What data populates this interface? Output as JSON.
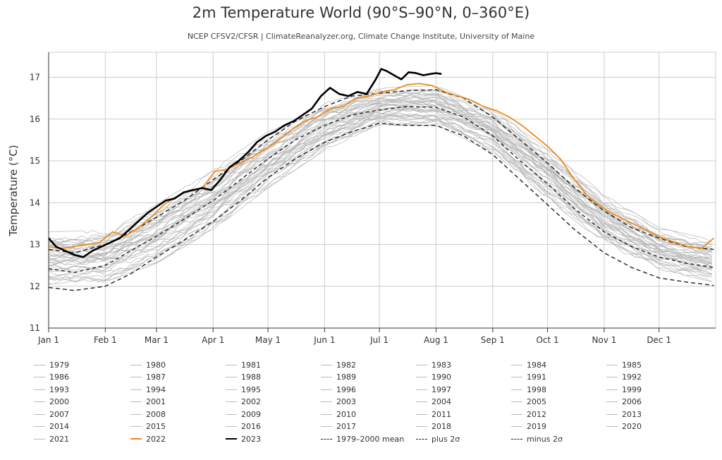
{
  "chart_data": {
    "type": "line",
    "title": "2m Temperature World (90°S–90°N, 0–360°E)",
    "subtitle": "NCEP CFSV2/CFSR | ClimateReanalyzer.org, Climate Change Institute, University of Maine",
    "xlabel": "",
    "ylabel": "Temperature (°C)",
    "ylim": [
      11,
      17.6
    ],
    "yticks": [
      11,
      12,
      13,
      14,
      15,
      16,
      17
    ],
    "xlim": [
      1,
      366
    ],
    "xticks": [
      {
        "label": "Jan 1",
        "day": 1
      },
      {
        "label": "Feb 1",
        "day": 32
      },
      {
        "label": "Mar 1",
        "day": 60
      },
      {
        "label": "Apr 1",
        "day": 91
      },
      {
        "label": "May 1",
        "day": 121
      },
      {
        "label": "Jun 1",
        "day": 152
      },
      {
        "label": "Jul 1",
        "day": 182
      },
      {
        "label": "Aug 1",
        "day": 213
      },
      {
        "label": "Sep 1",
        "day": 244
      },
      {
        "label": "Oct 1",
        "day": 274
      },
      {
        "label": "Nov 1",
        "day": 305
      },
      {
        "label": "Dec 1",
        "day": 335
      }
    ],
    "grid": true,
    "legend_position": "bottom",
    "background_years": [
      "1979",
      "1980",
      "1981",
      "1982",
      "1983",
      "1984",
      "1985",
      "1986",
      "1987",
      "1988",
      "1989",
      "1990",
      "1991",
      "1992",
      "1993",
      "1994",
      "1995",
      "1996",
      "1997",
      "1998",
      "1999",
      "2000",
      "2001",
      "2002",
      "2003",
      "2004",
      "2005",
      "2006",
      "2007",
      "2008",
      "2009",
      "2010",
      "2011",
      "2012",
      "2013",
      "2014",
      "2015",
      "2016",
      "2017",
      "2018",
      "2019",
      "2020",
      "2021"
    ],
    "envelope_day": [
      1,
      32,
      60,
      91,
      121,
      152,
      182,
      213,
      244,
      274,
      305,
      335,
      365
    ],
    "envelope_low": [
      12.05,
      12.1,
      12.55,
      13.35,
      14.35,
      15.25,
      15.85,
      15.85,
      15.2,
      14.1,
      13.0,
      12.4,
      12.1
    ],
    "envelope_high": [
      13.3,
      13.35,
      13.95,
      14.8,
      15.7,
      16.4,
      16.75,
      16.8,
      16.25,
      15.3,
      14.2,
      13.4,
      13.1
    ],
    "series": [
      {
        "name": "1979–2000 mean",
        "color": "#222222",
        "dash": "5,4",
        "x": [
          1,
          15,
          32,
          46,
          60,
          75,
          91,
          106,
          121,
          136,
          152,
          167,
          182,
          197,
          213,
          228,
          244,
          259,
          274,
          289,
          305,
          320,
          335,
          350,
          365
        ],
        "y": [
          12.42,
          12.33,
          12.5,
          12.85,
          13.2,
          13.6,
          14.05,
          14.55,
          15.05,
          15.5,
          15.85,
          16.1,
          16.22,
          16.3,
          16.28,
          16.05,
          15.6,
          15.0,
          14.45,
          13.85,
          13.3,
          12.95,
          12.7,
          12.55,
          12.45
        ]
      },
      {
        "name": "plus 2σ",
        "color": "#222222",
        "dash": "6,4",
        "x": [
          1,
          15,
          32,
          46,
          60,
          75,
          91,
          106,
          121,
          136,
          152,
          167,
          182,
          197,
          213,
          228,
          244,
          259,
          274,
          289,
          305,
          320,
          335,
          350,
          365
        ],
        "y": [
          12.88,
          12.8,
          13.0,
          13.3,
          13.65,
          14.05,
          14.55,
          15.0,
          15.5,
          15.95,
          16.3,
          16.55,
          16.62,
          16.68,
          16.7,
          16.5,
          16.05,
          15.5,
          14.95,
          14.35,
          13.8,
          13.4,
          13.15,
          12.95,
          12.88
        ]
      },
      {
        "name": "minus 2σ",
        "color": "#222222",
        "dash": "6,4",
        "x": [
          1,
          15,
          32,
          46,
          60,
          75,
          91,
          106,
          121,
          136,
          152,
          167,
          182,
          197,
          213,
          228,
          244,
          259,
          274,
          289,
          305,
          320,
          335,
          350,
          365
        ],
        "y": [
          11.97,
          11.9,
          12.0,
          12.3,
          12.7,
          13.1,
          13.55,
          14.05,
          14.6,
          15.05,
          15.45,
          15.7,
          15.9,
          15.85,
          15.85,
          15.6,
          15.15,
          14.55,
          13.95,
          13.35,
          12.8,
          12.45,
          12.2,
          12.1,
          12.02
        ]
      },
      {
        "name": "2022",
        "color": "#ee8a1e",
        "dash": "",
        "x": [
          1,
          8,
          15,
          22,
          29,
          36,
          43,
          50,
          57,
          64,
          71,
          78,
          85,
          92,
          99,
          106,
          113,
          120,
          127,
          134,
          141,
          148,
          155,
          162,
          169,
          176,
          183,
          190,
          197,
          204,
          211,
          218,
          225,
          232,
          239,
          246,
          253,
          260,
          267,
          274,
          281,
          288,
          295,
          302,
          309,
          316,
          323,
          330,
          337,
          344,
          351,
          358,
          365
        ],
        "y": [
          12.95,
          12.9,
          12.95,
          13.0,
          13.05,
          13.3,
          13.2,
          13.4,
          13.65,
          13.95,
          14.15,
          14.3,
          14.35,
          14.75,
          14.8,
          14.95,
          15.1,
          15.3,
          15.5,
          15.75,
          15.95,
          16.05,
          16.25,
          16.3,
          16.5,
          16.55,
          16.65,
          16.7,
          16.82,
          16.85,
          16.8,
          16.65,
          16.55,
          16.45,
          16.3,
          16.2,
          16.05,
          15.85,
          15.6,
          15.35,
          15.05,
          14.6,
          14.2,
          13.95,
          13.75,
          13.6,
          13.45,
          13.3,
          13.15,
          13.05,
          12.95,
          12.9,
          13.15
        ]
      },
      {
        "name": "2023",
        "color": "#000000",
        "dash": "",
        "x": [
          1,
          5,
          10,
          15,
          20,
          25,
          30,
          35,
          40,
          45,
          50,
          55,
          60,
          65,
          70,
          75,
          80,
          85,
          90,
          95,
          100,
          105,
          110,
          115,
          120,
          125,
          130,
          135,
          140,
          145,
          150,
          155,
          160,
          165,
          170,
          175,
          180,
          183,
          186,
          190,
          194,
          198,
          202,
          206,
          210,
          213,
          216
        ],
        "y": [
          13.15,
          12.95,
          12.85,
          12.75,
          12.7,
          12.85,
          12.95,
          13.05,
          13.15,
          13.35,
          13.55,
          13.75,
          13.9,
          14.05,
          14.1,
          14.25,
          14.3,
          14.35,
          14.3,
          14.55,
          14.85,
          15.0,
          15.2,
          15.45,
          15.6,
          15.7,
          15.85,
          15.95,
          16.1,
          16.25,
          16.55,
          16.75,
          16.6,
          16.55,
          16.65,
          16.6,
          16.95,
          17.2,
          17.15,
          17.05,
          16.95,
          17.12,
          17.1,
          17.05,
          17.08,
          17.1,
          17.08
        ]
      }
    ],
    "legend_entries": [
      {
        "label": "1979",
        "style": "gray"
      },
      {
        "label": "1980",
        "style": "gray"
      },
      {
        "label": "1981",
        "style": "gray"
      },
      {
        "label": "1982",
        "style": "gray"
      },
      {
        "label": "1983",
        "style": "gray"
      },
      {
        "label": "1984",
        "style": "gray"
      },
      {
        "label": "1985",
        "style": "gray"
      },
      {
        "label": "1986",
        "style": "gray"
      },
      {
        "label": "1987",
        "style": "gray"
      },
      {
        "label": "1988",
        "style": "gray"
      },
      {
        "label": "1989",
        "style": "gray"
      },
      {
        "label": "1990",
        "style": "gray"
      },
      {
        "label": "1991",
        "style": "gray"
      },
      {
        "label": "1992",
        "style": "gray"
      },
      {
        "label": "1993",
        "style": "gray"
      },
      {
        "label": "1994",
        "style": "gray"
      },
      {
        "label": "1995",
        "style": "gray"
      },
      {
        "label": "1996",
        "style": "gray"
      },
      {
        "label": "1997",
        "style": "gray"
      },
      {
        "label": "1998",
        "style": "gray"
      },
      {
        "label": "1999",
        "style": "gray"
      },
      {
        "label": "2000",
        "style": "gray"
      },
      {
        "label": "2001",
        "style": "gray"
      },
      {
        "label": "2002",
        "style": "gray"
      },
      {
        "label": "2003",
        "style": "gray"
      },
      {
        "label": "2004",
        "style": "gray"
      },
      {
        "label": "2005",
        "style": "gray"
      },
      {
        "label": "2006",
        "style": "gray"
      },
      {
        "label": "2007",
        "style": "gray"
      },
      {
        "label": "2008",
        "style": "gray"
      },
      {
        "label": "2009",
        "style": "gray"
      },
      {
        "label": "2010",
        "style": "gray"
      },
      {
        "label": "2011",
        "style": "gray"
      },
      {
        "label": "2012",
        "style": "gray"
      },
      {
        "label": "2013",
        "style": "gray"
      },
      {
        "label": "2014",
        "style": "gray"
      },
      {
        "label": "2015",
        "style": "gray"
      },
      {
        "label": "2016",
        "style": "gray"
      },
      {
        "label": "2017",
        "style": "gray"
      },
      {
        "label": "2018",
        "style": "gray"
      },
      {
        "label": "2019",
        "style": "gray"
      },
      {
        "label": "2020",
        "style": "gray"
      },
      {
        "label": "2021",
        "style": "gray"
      },
      {
        "label": "2022",
        "style": "orange"
      },
      {
        "label": "2023",
        "style": "black"
      },
      {
        "label": "1979–2000 mean",
        "style": "dash"
      },
      {
        "label": "plus 2σ",
        "style": "dashdot"
      },
      {
        "label": "minus 2σ",
        "style": "dashdot"
      }
    ]
  },
  "colors": {
    "gray_line": "#b4b4b4",
    "orange": "#ee8a1e",
    "black": "#000000",
    "grid": "#cccccc",
    "axis": "#333333"
  }
}
